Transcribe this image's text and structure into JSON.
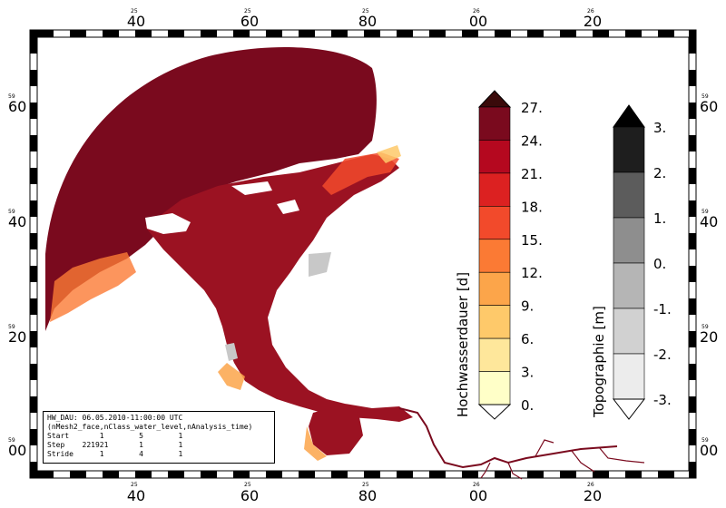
{
  "map": {
    "top_ticks": [
      {
        "minor": "25",
        "major": "40"
      },
      {
        "minor": "25",
        "major": "60"
      },
      {
        "minor": "25",
        "major": "80"
      },
      {
        "minor": "26",
        "major": "00"
      },
      {
        "minor": "26",
        "major": "20"
      }
    ],
    "bottom_ticks": [
      {
        "minor": "25",
        "major": "40"
      },
      {
        "minor": "25",
        "major": "60"
      },
      {
        "minor": "25",
        "major": "80"
      },
      {
        "minor": "26",
        "major": "00"
      },
      {
        "minor": "26",
        "major": "20"
      }
    ],
    "left_ticks": [
      {
        "minor": "59",
        "major": "60"
      },
      {
        "minor": "59",
        "major": "40"
      },
      {
        "minor": "59",
        "major": "20"
      },
      {
        "minor": "59",
        "major": "00"
      }
    ],
    "right_ticks": [
      {
        "minor": "59",
        "major": "60"
      },
      {
        "minor": "59",
        "major": "40"
      },
      {
        "minor": "59",
        "major": "20"
      },
      {
        "minor": "59",
        "major": "00"
      }
    ],
    "colors": {
      "land_flood": "#7a0a1e",
      "sea_background": "#ffffff",
      "gray_bank": "#c8c8c8"
    }
  },
  "colorbar_hw": {
    "title": "Hochwasserdauer [d]",
    "labels": [
      "27.",
      "24.",
      "21.",
      "18.",
      "15.",
      "12.",
      "9.",
      "6.",
      "3.",
      "0."
    ],
    "colors": [
      "#7a0a1e",
      "#b5081f",
      "#dc2121",
      "#f24a2b",
      "#fb7a34",
      "#fca54a",
      "#fec96a",
      "#fee79b",
      "#ffffc8"
    ],
    "over_color": "#3a0a0a"
  },
  "colorbar_topo": {
    "title": "Topographie [m]",
    "labels": [
      "3.",
      "2.",
      "1.",
      "0.",
      "-1.",
      "-2.",
      "-3."
    ],
    "colors": [
      "#1e1e1e",
      "#5c5c5c",
      "#8e8e8e",
      "#b5b5b5",
      "#d1d1d1",
      "#ececec"
    ],
    "over_color": "#000000"
  },
  "info_box": {
    "line1": "HW_DAU: 06.05.2010-11:00:00 UTC",
    "line2": "(nMesh2_face,nClass_water_level,nAnalysis_time)",
    "line3": "Start       1        5        1",
    "line4": "Step    221921       1        1",
    "line5": "Stride      1        4        1"
  }
}
